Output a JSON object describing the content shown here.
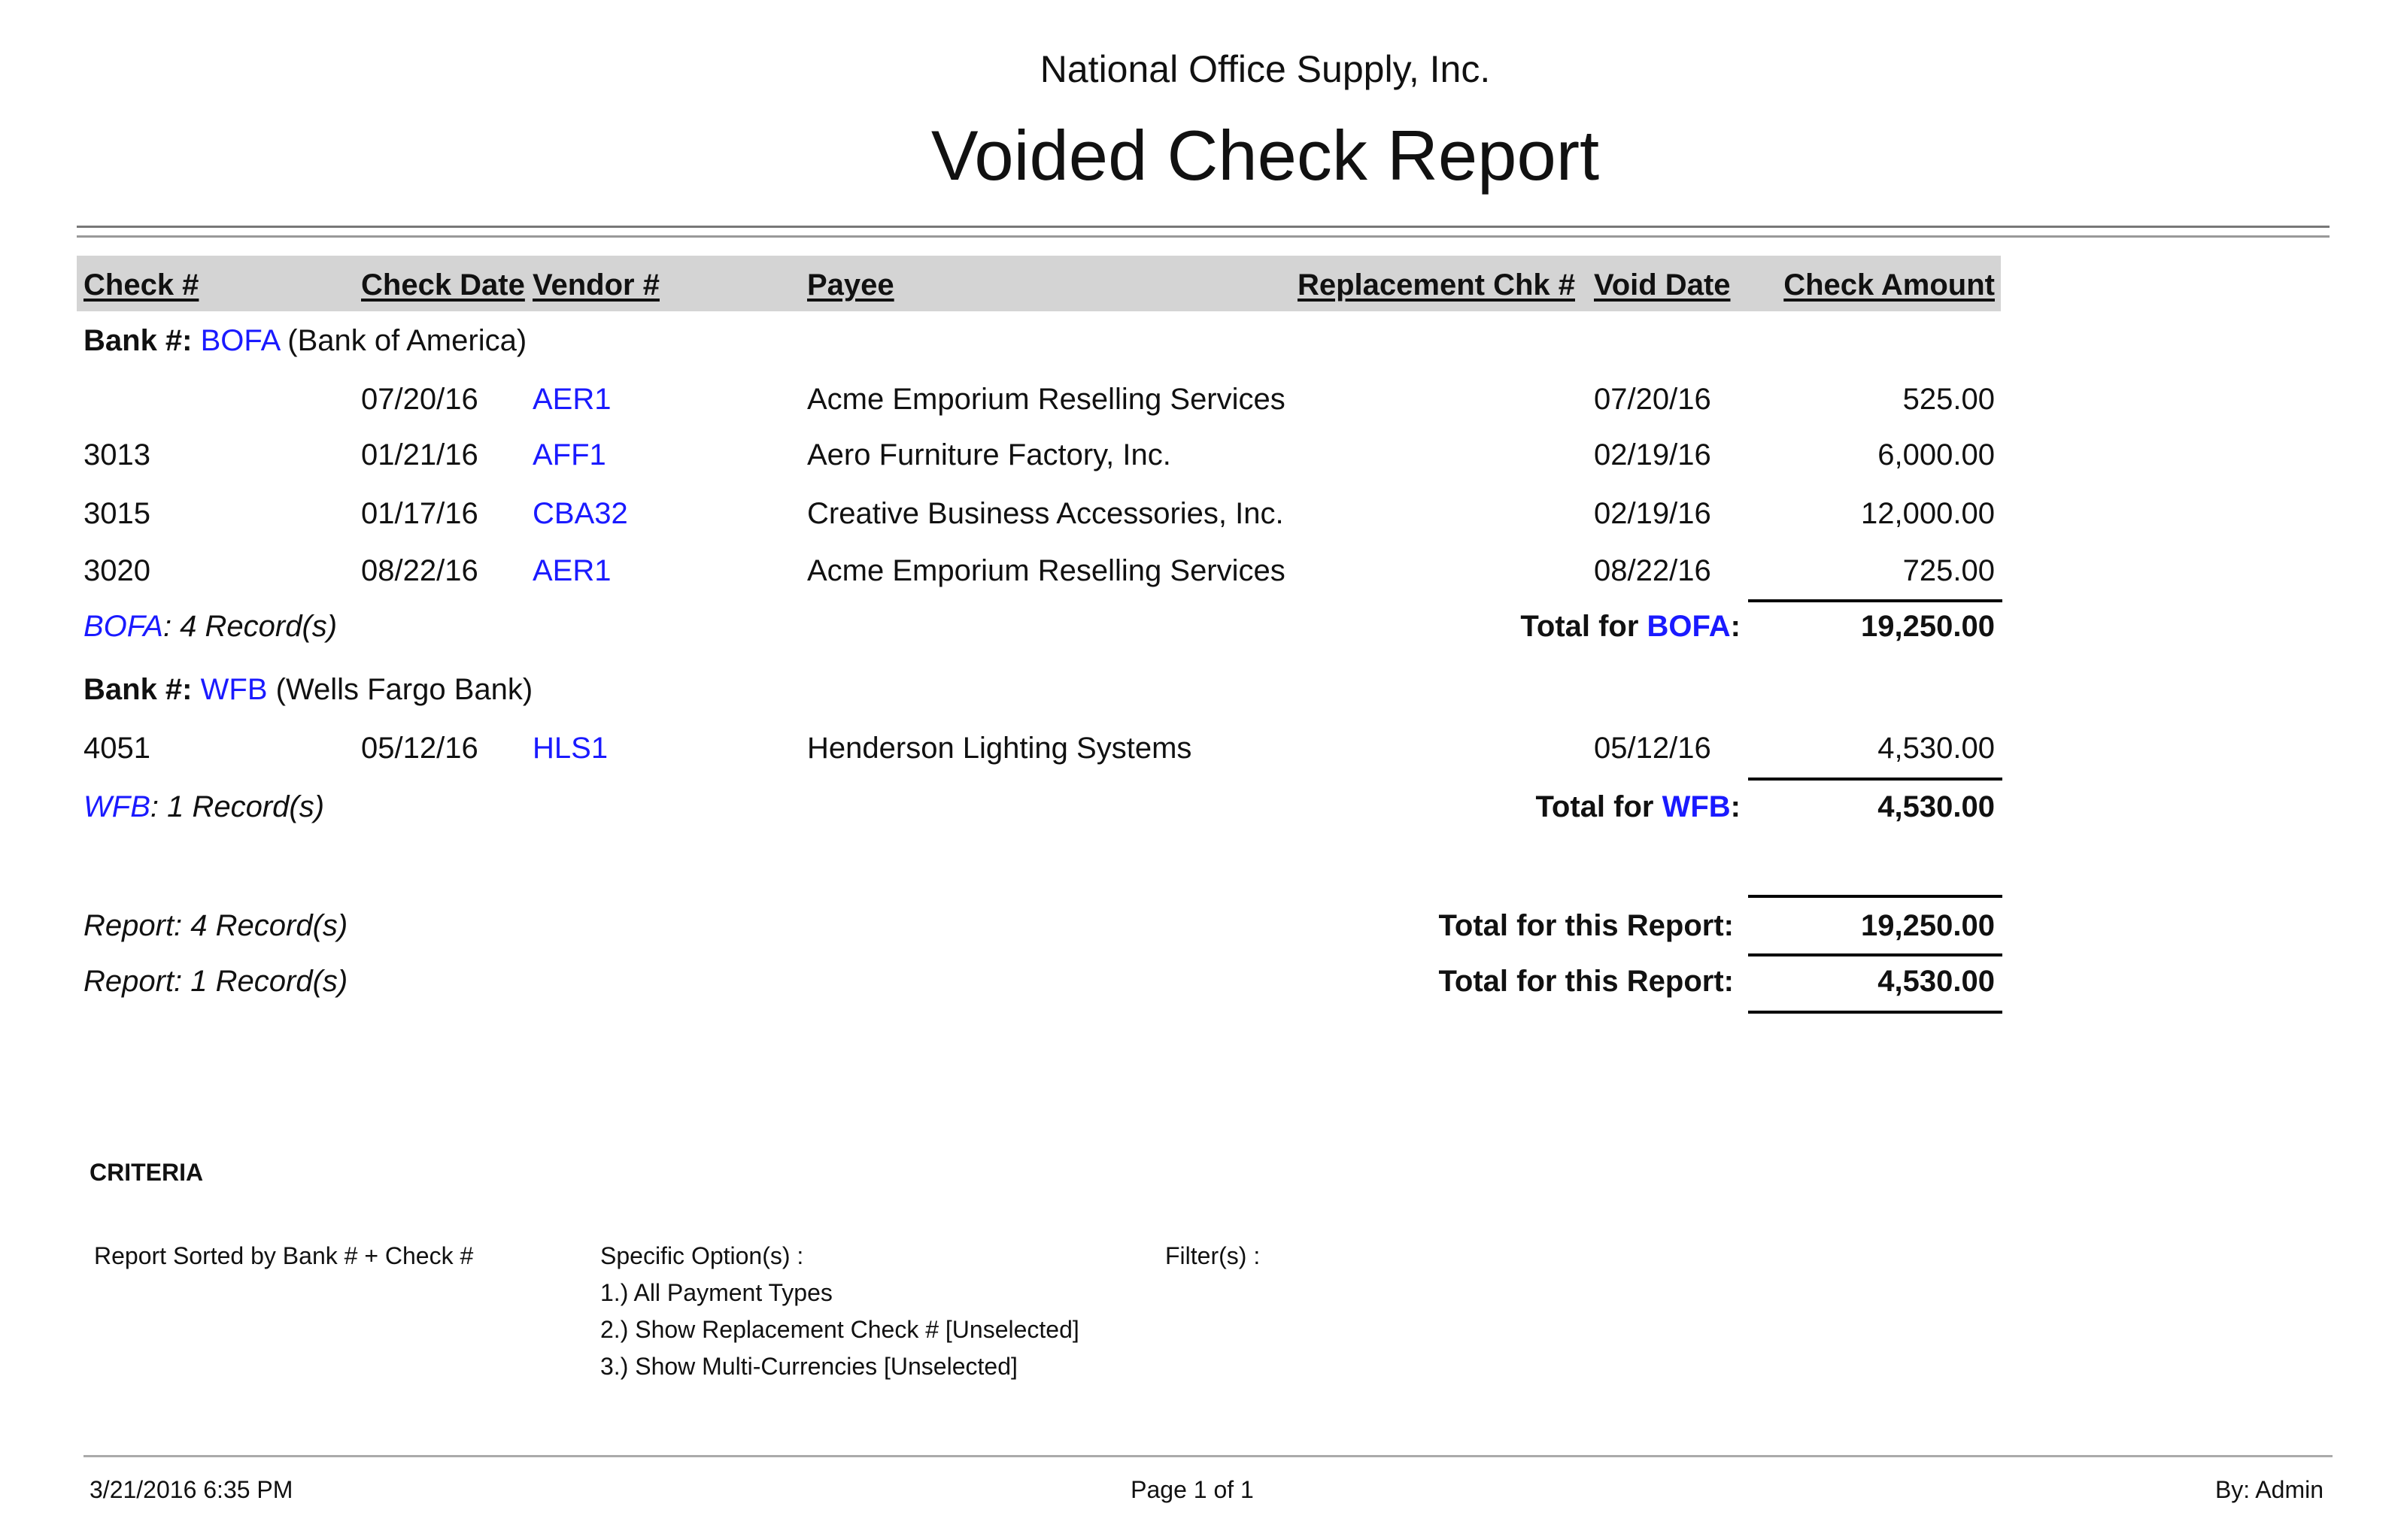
{
  "header": {
    "company": "National Office Supply, Inc.",
    "title": "Voided Check Report"
  },
  "columns": {
    "check_no": "Check #",
    "check_date": "Check Date",
    "vendor_no": "Vendor #",
    "payee": "Payee",
    "replacement_chk": "Replacement Chk #",
    "void_date": "Void Date",
    "check_amount": "Check Amount"
  },
  "banks": [
    {
      "label": "Bank #:",
      "code": "BOFA",
      "name": "(Bank of America)",
      "rows": [
        {
          "check_no": "",
          "check_date": "07/20/16",
          "vendor_no": "AER1",
          "payee": "Acme Emporium Reselling Services",
          "replacement_chk": "",
          "void_date": "07/20/16",
          "amount": "525.00"
        },
        {
          "check_no": "3013",
          "check_date": "01/21/16",
          "vendor_no": "AFF1",
          "payee": "Aero Furniture Factory, Inc.",
          "replacement_chk": "",
          "void_date": "02/19/16",
          "amount": "6,000.00"
        },
        {
          "check_no": "3015",
          "check_date": "01/17/16",
          "vendor_no": "CBA32",
          "payee": "Creative Business Accessories, Inc.",
          "replacement_chk": "",
          "void_date": "02/19/16",
          "amount": "12,000.00"
        },
        {
          "check_no": "3020",
          "check_date": "08/22/16",
          "vendor_no": "AER1",
          "payee": "Acme Emporium Reselling Services",
          "replacement_chk": "",
          "void_date": "08/22/16",
          "amount": "725.00"
        }
      ],
      "records": ": 4 Record(s)",
      "total_label": "Total for ",
      "total": "19,250.00"
    },
    {
      "label": "Bank #:",
      "code": "WFB",
      "name": "(Wells Fargo Bank)",
      "rows": [
        {
          "check_no": "4051",
          "check_date": "05/12/16",
          "vendor_no": "HLS1",
          "payee": "Henderson Lighting Systems",
          "replacement_chk": "",
          "void_date": "05/12/16",
          "amount": "4,530.00"
        }
      ],
      "records": ": 1 Record(s)",
      "total_label": "Total for ",
      "total": "4,530.00"
    }
  ],
  "report_totals": [
    {
      "records": "Report: 4 Record(s)",
      "label": "Total for this Report:",
      "total": "19,250.00"
    },
    {
      "records": "Report: 1 Record(s)",
      "label": "Total for this Report:",
      "total": "4,530.00"
    }
  ],
  "criteria": {
    "heading": "CRITERIA",
    "sorted": "Report Sorted by Bank # + Check #",
    "options_label": "Specific Option(s) :",
    "options": [
      "1.) All Payment Types",
      "2.) Show Replacement Check # [Unselected]",
      "3.) Show Multi-Currencies [Unselected]"
    ],
    "filters_label": "Filter(s) :"
  },
  "footer": {
    "datetime": "3/21/2016 6:35 PM",
    "page": "Page 1 of 1",
    "by": "By: Admin"
  },
  "colors": {
    "link": "#1a1aff",
    "header_band": "#d4d4d4"
  }
}
